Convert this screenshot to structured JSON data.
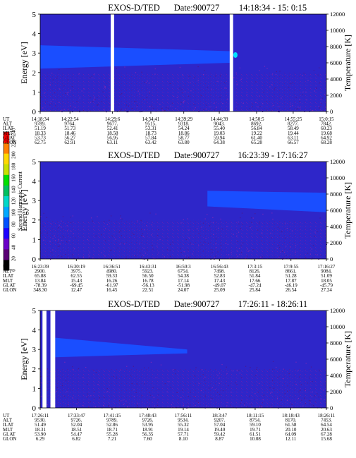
{
  "page": {
    "background": "#ffffff"
  },
  "colorbar": {
    "title": "Second Harmonic Current",
    "ticks": [
      0,
      20,
      40,
      60,
      80,
      100,
      120,
      140,
      160,
      180,
      200,
      220,
      240
    ],
    "colors": [
      "#000000",
      "#5a0075",
      "#6a00c8",
      "#1c00ff",
      "#0050ff",
      "#00a8ff",
      "#00d8c8",
      "#00c060",
      "#00e000",
      "#c8e000",
      "#ffd800",
      "#ff8000",
      "#ff0000"
    ]
  },
  "colors": {
    "background_level": "#2e26c9",
    "band_level": "#1a4eff",
    "speckle_level": "#5a1fa8",
    "datagap": "#ffffff",
    "hot_spot": "#00e0ff"
  },
  "panels": [
    {
      "title": "EXOS-D/TED",
      "date": "Date:900727",
      "timerange": "14:18:34 - 15: 0:15",
      "ylabel": "Energy [eV]",
      "y2label": "Temperature [K]",
      "row_labels": [
        "UT",
        "ALT",
        "ILAT",
        "MLT",
        "GLAT",
        "GLON"
      ],
      "columns": [
        [
          "14:18:34",
          "9789.",
          "51.19",
          "18.33",
          "53.73",
          "62.75"
        ],
        [
          "14:22:54",
          "9764.",
          "51.73",
          "18.46",
          "56.27",
          "62.91"
        ],
        [
          "14:29:6",
          "9677.",
          "52.41",
          "18.58",
          "56.95",
          "63.11"
        ],
        [
          "14:34:41",
          "9515.",
          "53.31",
          "18.73",
          "57.84",
          "63.42"
        ],
        [
          "14:39:29",
          "9318.",
          "54.24",
          "18.86",
          "58.77",
          "63.80"
        ],
        [
          "14:44:39",
          "9043.",
          "55.40",
          "19.03",
          "59.94",
          "64.38"
        ],
        [
          "14:50:5",
          "8692.",
          "56.84",
          "19.22",
          "61.40",
          "65.28"
        ],
        [
          "14:55:25",
          "8277.",
          "58.49",
          "19.44",
          "63.11",
          "66.57"
        ],
        [
          "15:0:15",
          "7842.",
          "60.23",
          "19.68",
          "64.92",
          "68.28"
        ]
      ]
    },
    {
      "title": "EXOS-D/TED",
      "date": "Date:900727",
      "timerange": "16:23:39 - 17:16:27",
      "ylabel": "Energy [eV]",
      "y2label": "Temperature [K]",
      "row_labels": [
        "UT",
        "ALT",
        "ILAT",
        "MLT",
        "GLAT",
        "GLON"
      ],
      "columns": [
        [
          "16:23:39",
          "2900.",
          "65.88",
          "13.84",
          "-78.39",
          "348.30"
        ],
        [
          "16:30:19",
          "3975.",
          "62.55",
          "15.43",
          "-69.45",
          "12.47"
        ],
        [
          "16:36:51",
          "4980.",
          "59.33",
          "16.26",
          "-61.97",
          "16.45"
        ],
        [
          "16:43:31",
          "5923.",
          "56.50",
          "16.78",
          "-56.13",
          "22.51"
        ],
        [
          "16:50:3",
          "6754.",
          "54.38",
          "17.14",
          "-51.98",
          "24.07"
        ],
        [
          "16:56:43",
          "7498.",
          "52.83",
          "17.43",
          "-49.07",
          "25.09"
        ],
        [
          "17:3:15",
          "8126.",
          "51.84",
          "17.66",
          "-47.24",
          "25.84"
        ],
        [
          "17:9:55",
          "8661.",
          "51.28",
          "17.87",
          "-46.19",
          "26.54"
        ],
        [
          "17:16:27",
          "9084.",
          "51.09",
          "18.05",
          "-45.79",
          "27.24"
        ]
      ]
    },
    {
      "title": "EXOS-D/TED",
      "date": "Date:900727",
      "timerange": "17:26:11 - 18:26:11",
      "ylabel": "Energy [eV]",
      "y2label": "Temperature [K]",
      "row_labels": [
        "UT",
        "ALT",
        "ILAT",
        "MLT",
        "GLAT",
        "GLON"
      ],
      "columns": [
        [
          "17:26:11",
          "9530.",
          "51.49",
          "18.31",
          "53.90",
          "6.29"
        ],
        [
          "17:33:47",
          "9726.",
          "52.04",
          "18.51",
          "54.47",
          "6.82"
        ],
        [
          "17:41:15",
          "9789.",
          "52.86",
          "18.71",
          "55.28",
          "7.21"
        ],
        [
          "17:48:43",
          "9726.",
          "53.95",
          "18.91",
          "56.35",
          "7.60"
        ],
        [
          "17:56:11",
          "9534.",
          "55.32",
          "19.14",
          "57.71",
          "8.10"
        ],
        [
          "18:3:47",
          "9207.",
          "57.04",
          "19.40",
          "59.42",
          "8.87"
        ],
        [
          "18:11:15",
          "8754.",
          "59.10",
          "19.71",
          "61.51",
          "10.08"
        ],
        [
          "18:18:43",
          "8170.",
          "61.58",
          "20.10",
          "64.09",
          "12.11"
        ],
        [
          "18:26:11",
          "7453.",
          "64.54",
          "20.63",
          "67.28",
          "15.68"
        ]
      ]
    }
  ],
  "chart_data": [
    {
      "type": "heatmap",
      "title": "EXOS-D/TED Date:900727 14:18:34 - 15: 0:15",
      "xlabel": "",
      "ylabel": "Energy [eV]",
      "y2label": "Temperature [K]",
      "ylim": [
        0,
        5
      ],
      "y2lim": [
        0,
        12000
      ],
      "yticks": [
        "0",
        "1",
        "2",
        "3",
        "4",
        "5"
      ],
      "y2ticks": [
        "0",
        "2000",
        "4000",
        "6000",
        "8000",
        "10000",
        "12000"
      ],
      "x_ticks": [
        "14:18:34",
        "14:22:54",
        "14:29:6",
        "14:34:41",
        "14:39:29",
        "14:44:39",
        "14:50:5",
        "14:55:25",
        "15:0:15"
      ],
      "colorbar_range": [
        0,
        240
      ],
      "data_gaps": [
        [
          "14:28:50",
          "14:29:20"
        ],
        [
          "14:46:10",
          "14:46:40"
        ]
      ],
      "bands": [
        {
          "from": "14:18:34",
          "to": "14:46:10",
          "energy_low": 2.2,
          "energy_high": 3.4,
          "energy_low_end": 2.5,
          "energy_high_end": 3.1,
          "level": 80
        }
      ],
      "hot_spots": [
        {
          "time": "14:47:00",
          "energy": 2.9,
          "level": 140
        }
      ]
    },
    {
      "type": "heatmap",
      "title": "EXOS-D/TED Date:900727 16:23:39 - 17:16:27",
      "xlabel": "",
      "ylabel": "Energy [eV]",
      "y2label": "Temperature [K]",
      "ylim": [
        0,
        5
      ],
      "y2lim": [
        0,
        12000
      ],
      "yticks": [
        "0",
        "1",
        "2",
        "3",
        "4",
        "5"
      ],
      "y2ticks": [
        "0",
        "2000",
        "4000",
        "6000",
        "8000",
        "10000",
        "12000"
      ],
      "x_ticks": [
        "16:23:39",
        "16:30:19",
        "16:36:51",
        "16:43:31",
        "16:50:3",
        "16:56:43",
        "17:3:15",
        "17:9:55",
        "17:16:27"
      ],
      "colorbar_range": [
        0,
        240
      ],
      "data_gaps": [],
      "bands": [
        {
          "from": "16:54:30",
          "to": "17:16:27",
          "energy_low": 2.7,
          "energy_high": 3.5,
          "energy_low_end": 2.4,
          "energy_high_end": 3.4,
          "level": 80
        }
      ],
      "hot_spots": []
    },
    {
      "type": "heatmap",
      "title": "EXOS-D/TED Date:900727 17:26:11 - 18:26:11",
      "xlabel": "",
      "ylabel": "Energy [eV]",
      "y2label": "Temperature [K]",
      "ylim": [
        0,
        5
      ],
      "y2lim": [
        0,
        12000
      ],
      "yticks": [
        "0",
        "1",
        "2",
        "3",
        "4",
        "5"
      ],
      "y2ticks": [
        "0",
        "2000",
        "4000",
        "6000",
        "8000",
        "10000",
        "12000"
      ],
      "x_ticks": [
        "17:26:11",
        "17:33:47",
        "17:41:15",
        "17:48:43",
        "17:56:11",
        "18:3:47",
        "18:11:15",
        "18:18:43",
        "18:26:11"
      ],
      "colorbar_range": [
        0,
        240
      ],
      "data_gaps": [
        [
          "17:26:40",
          "17:27:30"
        ],
        [
          "17:28:20",
          "17:29:20"
        ]
      ],
      "bands": [
        {
          "from": "17:29:20",
          "to": "17:57:00",
          "energy_low": 2.6,
          "energy_high": 3.6,
          "energy_low_end": 2.8,
          "energy_high_end": 3.0,
          "level": 80
        }
      ],
      "hot_spots": []
    }
  ]
}
